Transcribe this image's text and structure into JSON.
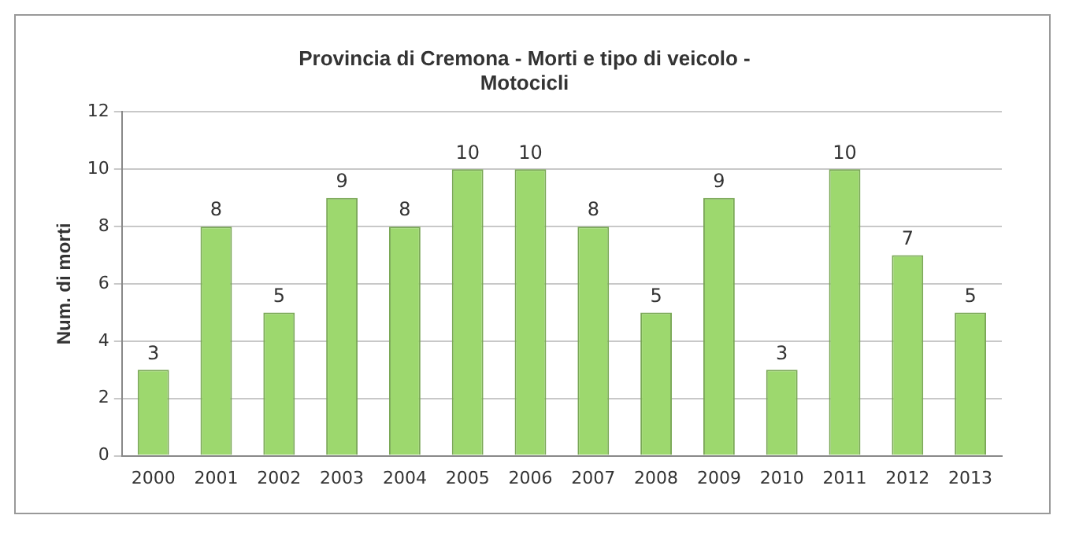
{
  "chart_data": {
    "type": "bar",
    "title": "Provincia di Cremona - Morti e tipo di veicolo - Motocicli",
    "ylabel": "Num. di morti",
    "categories": [
      "2000",
      "2001",
      "2002",
      "2003",
      "2004",
      "2005",
      "2006",
      "2007",
      "2008",
      "2009",
      "2010",
      "2011",
      "2012",
      "2013"
    ],
    "values": [
      3,
      8,
      5,
      9,
      8,
      10,
      10,
      8,
      5,
      9,
      3,
      10,
      7,
      5
    ],
    "color": "#9dd86e",
    "ylim": [
      0,
      12
    ],
    "yticks": [
      0,
      2,
      4,
      6,
      8,
      10,
      12
    ],
    "grid": "y",
    "data_labels": true,
    "legend": false
  }
}
